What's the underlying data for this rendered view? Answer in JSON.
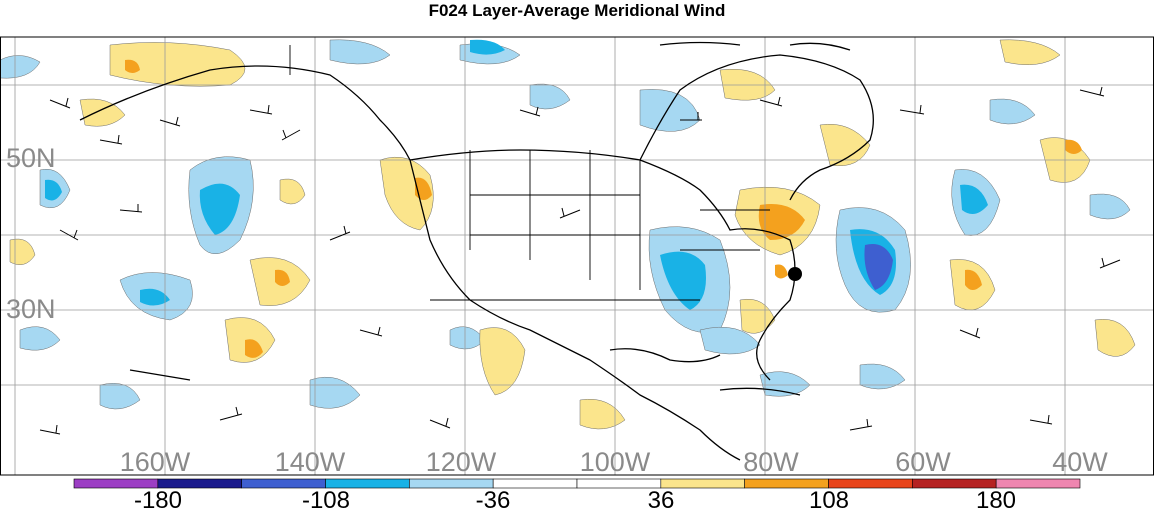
{
  "title": "F024 Layer-Average Meridional Wind",
  "lat_labels": [
    "50N",
    "30N"
  ],
  "lon_labels": [
    "160W",
    "140W",
    "120W",
    "100W",
    "80W",
    "60W",
    "40W"
  ],
  "colorbar": {
    "colors": [
      "#9c3ec4",
      "#1a1a8c",
      "#3e5fd0",
      "#19b2e6",
      "#a6d8f2",
      "#ffffff",
      "#ffffff",
      "#fbe58c",
      "#f4a11e",
      "#e8441a",
      "#b52222",
      "#ef86b0"
    ],
    "tick_labels": [
      "-180",
      "-108",
      "-36",
      "36",
      "108",
      "180"
    ]
  }
}
